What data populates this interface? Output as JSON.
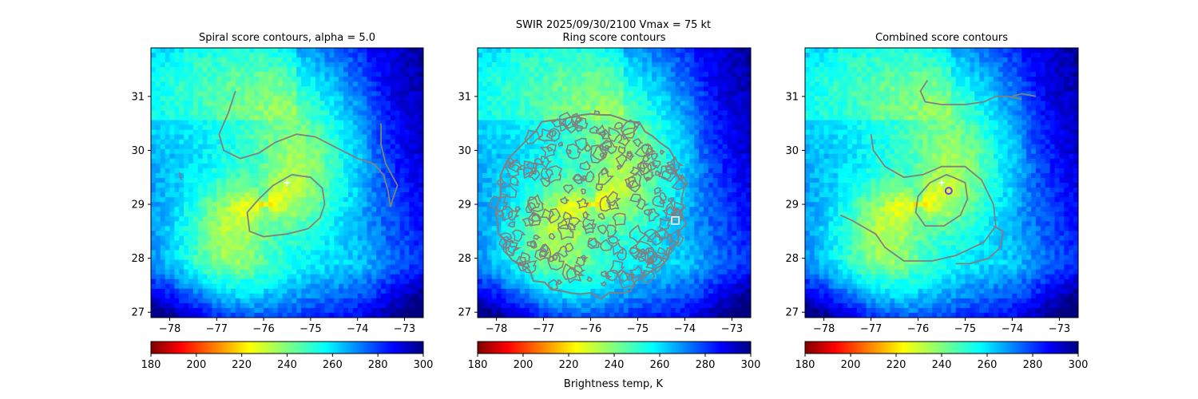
{
  "figure": {
    "suptitle_line1": "SWIR  2025/09/30/2100    Vmax = 75 kt",
    "colorbar_label": "Brightness temp, K"
  },
  "chart_data": [
    {
      "type": "heatmap",
      "title": "Spiral score contours, alpha =  5.0",
      "xlim": [
        -78.4,
        -72.6
      ],
      "ylim": [
        26.9,
        31.9
      ],
      "xticks": [
        "−78",
        "−77",
        "−76",
        "−75",
        "−74",
        "−73"
      ],
      "xtick_values": [
        -78,
        -77,
        -76,
        -75,
        -74,
        -73
      ],
      "yticks": [
        "27",
        "28",
        "29",
        "30",
        "31"
      ],
      "ytick_values": [
        27,
        28,
        29,
        30,
        31
      ],
      "colorbar": {
        "range": [
          180,
          300
        ],
        "ticks": [
          "180",
          "200",
          "220",
          "240",
          "260",
          "280",
          "300"
        ],
        "tick_values": [
          180,
          200,
          220,
          240,
          260,
          280,
          300
        ],
        "colormap": "jet_r"
      },
      "contour_color": "#808080",
      "contours": [
        [
          [
            -76.6,
            31.1
          ],
          [
            -76.75,
            30.7
          ],
          [
            -76.95,
            30.3
          ],
          [
            -76.85,
            30.0
          ],
          [
            -76.5,
            29.85
          ],
          [
            -76.1,
            29.95
          ],
          [
            -75.75,
            30.15
          ],
          [
            -75.3,
            30.3
          ],
          [
            -74.9,
            30.25
          ],
          [
            -74.45,
            30.05
          ],
          [
            -74.0,
            29.85
          ],
          [
            -73.65,
            29.75
          ],
          [
            -73.45,
            29.55
          ],
          [
            -73.35,
            29.25
          ],
          [
            -73.3,
            28.95
          ]
        ],
        [
          [
            -73.3,
            28.95
          ],
          [
            -73.25,
            29.1
          ],
          [
            -73.15,
            29.35
          ],
          [
            -73.4,
            29.75
          ],
          [
            -73.5,
            30.1
          ],
          [
            -73.5,
            30.5
          ]
        ],
        [
          [
            -75.4,
            29.55
          ],
          [
            -75.0,
            29.5
          ],
          [
            -74.75,
            29.3
          ],
          [
            -74.7,
            29.0
          ],
          [
            -74.8,
            28.75
          ],
          [
            -75.05,
            28.55
          ],
          [
            -75.5,
            28.45
          ],
          [
            -76.0,
            28.4
          ],
          [
            -76.3,
            28.5
          ],
          [
            -76.35,
            28.85
          ],
          [
            -76.1,
            29.1
          ],
          [
            -75.8,
            29.35
          ],
          [
            -75.4,
            29.55
          ]
        ],
        [
          [
            -77.8,
            29.6
          ],
          [
            -77.75,
            29.45
          ]
        ]
      ],
      "markers": [
        {
          "symbol": "plus",
          "color": "#ffffff",
          "x": -75.5,
          "y": 29.4
        }
      ]
    },
    {
      "type": "heatmap",
      "title": "Ring score contours",
      "xlim": [
        -78.4,
        -72.6
      ],
      "ylim": [
        26.9,
        31.9
      ],
      "xticks": [
        "−78",
        "−77",
        "−76",
        "−75",
        "−74",
        "−73"
      ],
      "xtick_values": [
        -78,
        -77,
        -76,
        -75,
        -74,
        -73
      ],
      "yticks": [
        "27",
        "28",
        "29",
        "30",
        "31"
      ],
      "ytick_values": [
        27,
        28,
        29,
        30,
        31
      ],
      "colorbar": {
        "range": [
          180,
          300
        ],
        "ticks": [
          "180",
          "200",
          "220",
          "240",
          "260",
          "280",
          "300"
        ],
        "tick_values": [
          180,
          200,
          220,
          240,
          260,
          280,
          300
        ],
        "colormap": "jet_r"
      },
      "contour_color": "#808080",
      "ring_region": {
        "center": [
          -76.0,
          29.0
        ],
        "radius_x": 2.0,
        "radius_y": 1.7
      },
      "markers": [
        {
          "symbol": "square",
          "color": "#ffffff",
          "x": -74.2,
          "y": 28.7
        }
      ]
    },
    {
      "type": "heatmap",
      "title": "Combined score contours",
      "xlim": [
        -78.4,
        -72.6
      ],
      "ylim": [
        26.9,
        31.9
      ],
      "xticks": [
        "−78",
        "−77",
        "−76",
        "−75",
        "−74",
        "−73"
      ],
      "xtick_values": [
        -78,
        -77,
        -76,
        -75,
        -74,
        -73
      ],
      "yticks": [
        "27",
        "28",
        "29",
        "30",
        "31"
      ],
      "ytick_values": [
        27,
        28,
        29,
        30,
        31
      ],
      "colorbar": {
        "range": [
          180,
          300
        ],
        "ticks": [
          "180",
          "200",
          "220",
          "240",
          "260",
          "280",
          "300"
        ],
        "tick_values": [
          180,
          200,
          220,
          240,
          260,
          280,
          300
        ],
        "colormap": "jet_r"
      },
      "contour_color": "#808080",
      "contours": [
        [
          [
            -77.0,
            30.3
          ],
          [
            -76.95,
            30.0
          ],
          [
            -76.7,
            29.7
          ],
          [
            -76.3,
            29.5
          ],
          [
            -75.9,
            29.55
          ],
          [
            -75.5,
            29.7
          ],
          [
            -75.0,
            29.7
          ],
          [
            -74.65,
            29.45
          ],
          [
            -74.4,
            29.0
          ],
          [
            -74.35,
            28.6
          ],
          [
            -74.6,
            28.3
          ],
          [
            -75.2,
            28.05
          ],
          [
            -75.7,
            27.95
          ],
          [
            -76.3,
            27.95
          ],
          [
            -76.7,
            28.2
          ],
          [
            -76.9,
            28.45
          ],
          [
            -77.1,
            28.55
          ],
          [
            -77.4,
            28.7
          ],
          [
            -77.65,
            28.8
          ]
        ],
        [
          [
            -75.25,
            29.5
          ],
          [
            -75.0,
            29.4
          ],
          [
            -74.95,
            29.1
          ],
          [
            -75.1,
            28.8
          ],
          [
            -75.45,
            28.6
          ],
          [
            -75.85,
            28.6
          ],
          [
            -76.05,
            28.85
          ],
          [
            -76.0,
            29.15
          ],
          [
            -75.75,
            29.4
          ],
          [
            -75.4,
            29.55
          ],
          [
            -75.25,
            29.5
          ]
        ],
        [
          [
            -74.4,
            28.6
          ],
          [
            -74.2,
            28.5
          ],
          [
            -74.25,
            28.2
          ],
          [
            -74.5,
            28.0
          ],
          [
            -74.9,
            27.9
          ],
          [
            -75.2,
            27.9
          ]
        ],
        [
          [
            -75.8,
            31.3
          ],
          [
            -75.95,
            31.1
          ],
          [
            -75.85,
            30.9
          ],
          [
            -75.5,
            30.85
          ],
          [
            -75.0,
            30.85
          ],
          [
            -74.6,
            30.9
          ],
          [
            -74.35,
            31.0
          ],
          [
            -74.1,
            31.0
          ],
          [
            -73.8,
            30.95
          ]
        ],
        [
          [
            -74.0,
            31.0
          ],
          [
            -73.8,
            31.05
          ],
          [
            -73.5,
            31.0
          ]
        ]
      ],
      "markers": [
        {
          "symbol": "plus",
          "color": "#ffffff",
          "x": -75.5,
          "y": 29.4
        },
        {
          "symbol": "circle",
          "color": "#8a2be2",
          "x": -75.35,
          "y": 29.25
        }
      ]
    }
  ]
}
